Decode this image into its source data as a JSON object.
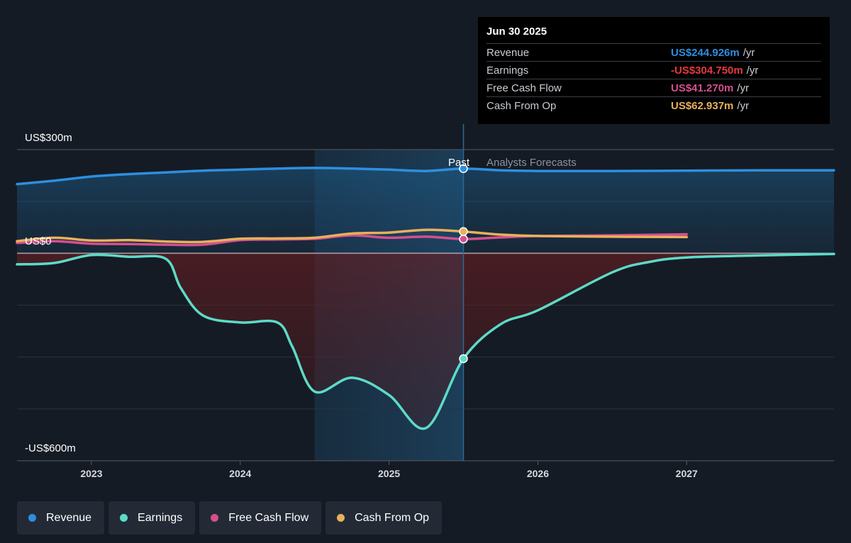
{
  "chart_data": {
    "type": "line",
    "y_labels": {
      "top": "US$300m",
      "zero": "US$0",
      "bottom": "-US$600m"
    },
    "ylim": [
      -600,
      300
    ],
    "xlim": [
      2022.5,
      2027.99
    ],
    "x_ticks": [
      2023,
      2024,
      2025,
      2026,
      2027
    ],
    "x_tick_labels": [
      "2023",
      "2024",
      "2025",
      "2026",
      "2027"
    ],
    "period_labels": {
      "past": "Past",
      "forecast": "Analysts Forecasts"
    },
    "past_region": [
      2024.5,
      2025.5
    ],
    "divider_x": 2025.5,
    "grid": true,
    "series": [
      {
        "name": "Revenue",
        "color": "#2d8fe0",
        "fill": true,
        "points": [
          [
            2022.5,
            200
          ],
          [
            2022.75,
            210
          ],
          [
            2023,
            222
          ],
          [
            2023.25,
            229
          ],
          [
            2023.5,
            234
          ],
          [
            2023.75,
            239
          ],
          [
            2024,
            242
          ],
          [
            2024.25,
            245
          ],
          [
            2024.5,
            247
          ],
          [
            2024.75,
            245
          ],
          [
            2025,
            242
          ],
          [
            2025.25,
            238
          ],
          [
            2025.5,
            244.9
          ],
          [
            2025.75,
            240
          ],
          [
            2026,
            238
          ],
          [
            2026.5,
            238
          ],
          [
            2027,
            239
          ],
          [
            2027.5,
            240
          ],
          [
            2027.99,
            240
          ]
        ]
      },
      {
        "name": "Earnings",
        "color": "#5cdbc8",
        "fill": true,
        "points": [
          [
            2022.5,
            -32
          ],
          [
            2022.75,
            -28
          ],
          [
            2023,
            -5
          ],
          [
            2023.25,
            -10
          ],
          [
            2023.5,
            -16
          ],
          [
            2023.6,
            -100
          ],
          [
            2023.75,
            -180
          ],
          [
            2024,
            -200
          ],
          [
            2024.25,
            -200
          ],
          [
            2024.35,
            -270
          ],
          [
            2024.5,
            -400
          ],
          [
            2024.75,
            -360
          ],
          [
            2025,
            -410
          ],
          [
            2025.25,
            -505
          ],
          [
            2025.5,
            -304.75
          ],
          [
            2025.75,
            -205
          ],
          [
            2026,
            -165
          ],
          [
            2026.5,
            -55
          ],
          [
            2026.75,
            -25
          ],
          [
            2027,
            -12
          ],
          [
            2027.5,
            -6
          ],
          [
            2027.99,
            -2
          ]
        ]
      },
      {
        "name": "Free Cash Flow",
        "color": "#d64f8f",
        "fill": false,
        "points": [
          [
            2022.5,
            30
          ],
          [
            2022.75,
            35
          ],
          [
            2023,
            28
          ],
          [
            2023.25,
            27
          ],
          [
            2023.5,
            25
          ],
          [
            2023.75,
            25
          ],
          [
            2024,
            38
          ],
          [
            2024.25,
            40
          ],
          [
            2024.5,
            42
          ],
          [
            2024.75,
            52
          ],
          [
            2025,
            45
          ],
          [
            2025.25,
            48
          ],
          [
            2025.5,
            41.27
          ],
          [
            2025.75,
            46
          ],
          [
            2026,
            50
          ],
          [
            2026.5,
            52
          ],
          [
            2027,
            55
          ]
        ]
      },
      {
        "name": "Cash From Op",
        "color": "#e8b05c",
        "fill": false,
        "points": [
          [
            2022.5,
            35
          ],
          [
            2022.75,
            45
          ],
          [
            2023,
            37
          ],
          [
            2023.25,
            38
          ],
          [
            2023.5,
            34
          ],
          [
            2023.75,
            33
          ],
          [
            2024,
            42
          ],
          [
            2024.25,
            43
          ],
          [
            2024.5,
            45
          ],
          [
            2024.75,
            57
          ],
          [
            2025,
            60
          ],
          [
            2025.25,
            68
          ],
          [
            2025.5,
            62.94
          ],
          [
            2025.75,
            54
          ],
          [
            2026,
            50
          ],
          [
            2026.5,
            48
          ],
          [
            2027,
            47
          ]
        ]
      }
    ],
    "highlight": {
      "x": 2025.5,
      "date": "Jun 30 2025",
      "rows": [
        {
          "label": "Revenue",
          "value": "US$244.926m",
          "unit": "/yr",
          "color": "#2d8fe0"
        },
        {
          "label": "Earnings",
          "value": "-US$304.750m",
          "unit": "/yr",
          "color": "#e6393f"
        },
        {
          "label": "Free Cash Flow",
          "value": "US$41.270m",
          "unit": "/yr",
          "color": "#d64f8f"
        },
        {
          "label": "Cash From Op",
          "value": "US$62.937m",
          "unit": "/yr",
          "color": "#e8b05c"
        }
      ]
    }
  },
  "legend": [
    {
      "label": "Revenue",
      "color": "#2d8fe0"
    },
    {
      "label": "Earnings",
      "color": "#5cdbc8"
    },
    {
      "label": "Free Cash Flow",
      "color": "#d64f8f"
    },
    {
      "label": "Cash From Op",
      "color": "#e8b05c"
    }
  ]
}
